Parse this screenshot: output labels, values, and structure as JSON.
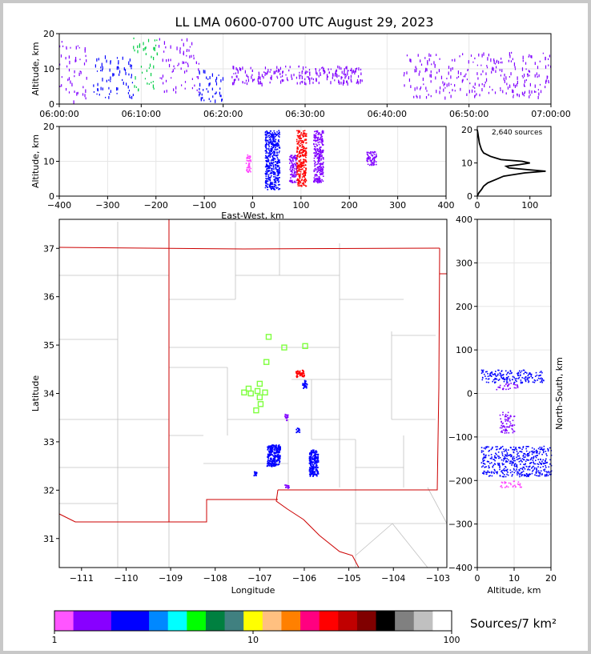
{
  "title": "LL LMA 0600-0700 UTC August 29, 2023",
  "colors": {
    "frame": "#c8c8c8",
    "state_border": "#cc0000",
    "county": "#c0c0c0",
    "station": "#7fff3f",
    "grid": "#e6e6e6"
  },
  "chart_data": [
    {
      "id": "time_altitude",
      "type": "scatter",
      "ylabel": "Altitude, km",
      "xlabel": "",
      "xticks": [
        "06:00:00",
        "06:10:00",
        "06:20:00",
        "06:30:00",
        "06:40:00",
        "06:50:00",
        "07:00:00"
      ],
      "xlim_minutes": [
        0,
        60
      ],
      "ylim": [
        0,
        20
      ],
      "yticks": [
        0,
        10,
        20
      ],
      "grid": true,
      "source_clusters": [
        {
          "t": [
            0,
            3.5
          ],
          "alt": [
            1,
            18
          ],
          "color": "#8000ff"
        },
        {
          "t": [
            4,
            9
          ],
          "alt": [
            2,
            14
          ],
          "color": "#0000ff"
        },
        {
          "t": [
            9,
            12
          ],
          "alt": [
            4,
            19
          ],
          "color": "#00cc44"
        },
        {
          "t": [
            12,
            17
          ],
          "alt": [
            3,
            19
          ],
          "color": "#8000ff"
        },
        {
          "t": [
            17,
            20
          ],
          "alt": [
            1,
            10
          ],
          "color": "#0000ff"
        },
        {
          "t": [
            21,
            37
          ],
          "alt": [
            6,
            11
          ],
          "color": "#8000ff"
        },
        {
          "t": [
            42,
            60
          ],
          "alt": [
            2,
            15
          ],
          "color": "#8000ff"
        }
      ]
    },
    {
      "id": "ew_altitude",
      "type": "scatter",
      "xlabel": "East-West, km",
      "ylabel": "Altitude, km",
      "xlim": [
        -400,
        400
      ],
      "xticks": [
        -400,
        -300,
        -200,
        -100,
        0,
        100,
        200,
        300,
        400
      ],
      "ylim": [
        0,
        20
      ],
      "yticks": [
        0,
        10,
        20
      ],
      "grid": true,
      "source_clusters": [
        {
          "x": [
            -15,
            -5
          ],
          "alt": [
            7,
            12
          ],
          "color": "#ff40ff"
        },
        {
          "x": [
            25,
            55
          ],
          "alt": [
            2,
            19
          ],
          "color": "#0000ff"
        },
        {
          "x": [
            75,
            90
          ],
          "alt": [
            4,
            12
          ],
          "color": "#8000ff"
        },
        {
          "x": [
            90,
            110
          ],
          "alt": [
            3,
            19
          ],
          "color": "#ff0000"
        },
        {
          "x": [
            125,
            145
          ],
          "alt": [
            4,
            19
          ],
          "color": "#8000ff"
        },
        {
          "x": [
            235,
            255
          ],
          "alt": [
            9,
            13
          ],
          "color": "#8000ff"
        }
      ]
    },
    {
      "id": "altitude_histogram",
      "type": "line",
      "annotation": "2,640 sources",
      "xlim": [
        0,
        140
      ],
      "xticks": [
        0,
        100
      ],
      "ylim": [
        0,
        21
      ],
      "yticks": [
        0,
        10,
        20
      ],
      "alt": [
        0,
        1,
        2,
        3,
        4,
        5,
        6,
        7,
        7.5,
        8,
        8.5,
        9,
        9.5,
        10,
        10.5,
        11,
        11.5,
        12,
        13,
        14,
        15,
        16,
        17,
        18,
        19,
        20
      ],
      "count": [
        0,
        3,
        8,
        12,
        20,
        35,
        50,
        90,
        130,
        95,
        60,
        55,
        80,
        100,
        85,
        45,
        35,
        25,
        12,
        8,
        6,
        4,
        3,
        2,
        1,
        0
      ]
    },
    {
      "id": "plan_view",
      "type": "scatter",
      "xlabel": "Longitude",
      "ylabel": "Latitude",
      "xlim": [
        -111.5,
        -102.8
      ],
      "ylim": [
        30.4,
        37.6
      ],
      "xticks": [
        -111,
        -110,
        -109,
        -108,
        -107,
        -106,
        -105,
        -104,
        -103
      ],
      "yticks": [
        31,
        32,
        33,
        34,
        35,
        36,
        37
      ],
      "stations": [
        {
          "lon": -106.8,
          "lat": 35.17
        },
        {
          "lon": -106.45,
          "lat": 34.95
        },
        {
          "lon": -105.98,
          "lat": 34.98
        },
        {
          "lon": -106.85,
          "lat": 34.65
        },
        {
          "lon": -107.0,
          "lat": 34.2
        },
        {
          "lon": -107.25,
          "lat": 34.1
        },
        {
          "lon": -107.35,
          "lat": 34.02
        },
        {
          "lon": -107.2,
          "lat": 34.0
        },
        {
          "lon": -107.05,
          "lat": 34.05
        },
        {
          "lon": -106.88,
          "lat": 34.02
        },
        {
          "lon": -107.0,
          "lat": 33.92
        },
        {
          "lon": -106.98,
          "lat": 33.78
        },
        {
          "lon": -107.08,
          "lat": 33.65
        }
      ],
      "source_clusters": [
        {
          "lon": [
            -106.2,
            -106.0
          ],
          "lat": [
            34.35,
            34.5
          ],
          "color": "#ff0000"
        },
        {
          "lon": [
            -106.05,
            -105.95
          ],
          "lat": [
            34.12,
            34.28
          ],
          "color": "#0000ff"
        },
        {
          "lon": [
            -106.45,
            -106.38
          ],
          "lat": [
            33.45,
            33.58
          ],
          "color": "#8000ff"
        },
        {
          "lon": [
            -106.2,
            -106.12
          ],
          "lat": [
            33.2,
            33.3
          ],
          "color": "#0000ff"
        },
        {
          "lon": [
            -106.85,
            -106.55
          ],
          "lat": [
            32.5,
            32.95
          ],
          "color": "#0000ff"
        },
        {
          "lon": [
            -107.15,
            -107.08
          ],
          "lat": [
            32.3,
            32.4
          ],
          "color": "#0000ff"
        },
        {
          "lon": [
            -105.9,
            -105.7
          ],
          "lat": [
            32.3,
            32.85
          ],
          "color": "#0000ff"
        },
        {
          "lon": [
            -106.45,
            -106.35
          ],
          "lat": [
            32.05,
            32.12
          ],
          "color": "#8000ff"
        }
      ]
    },
    {
      "id": "altitude_ns",
      "type": "scatter",
      "xlabel": "Altitude, km",
      "ylabel": "North-South, km",
      "xlim": [
        0,
        20
      ],
      "xticks": [
        0,
        10,
        20
      ],
      "ylim": [
        -400,
        400
      ],
      "yticks": [
        -400,
        -300,
        -200,
        -100,
        0,
        100,
        200,
        300,
        400
      ],
      "grid": true,
      "source_clusters": [
        {
          "alt": [
            1,
            18
          ],
          "ns": [
            25,
            55
          ],
          "color": "#0000ff"
        },
        {
          "alt": [
            5,
            11
          ],
          "ns": [
            10,
            25
          ],
          "color": "#8000ff"
        },
        {
          "alt": [
            6,
            10
          ],
          "ns": [
            -90,
            -40
          ],
          "color": "#8000ff"
        },
        {
          "alt": [
            1,
            20
          ],
          "ns": [
            -190,
            -120
          ],
          "color": "#0000ff"
        },
        {
          "alt": [
            6,
            12
          ],
          "ns": [
            -215,
            -200
          ],
          "color": "#ff40ff"
        }
      ]
    }
  ],
  "colorbar": {
    "label": "Sources/7 km²",
    "tick_labels": [
      "1",
      "10",
      "100"
    ],
    "colors": [
      "#ff55ff",
      "#8800ff",
      "#8800ff",
      "#0000ff",
      "#0000ff",
      "#0088ff",
      "#00ffff",
      "#00ff00",
      "#008040",
      "#408080",
      "#ffff00",
      "#ffc080",
      "#ff8000",
      "#ff0080",
      "#ff0000",
      "#c00000",
      "#800000",
      "#000000",
      "#808080",
      "#c0c0c0",
      "#ffffff"
    ]
  }
}
